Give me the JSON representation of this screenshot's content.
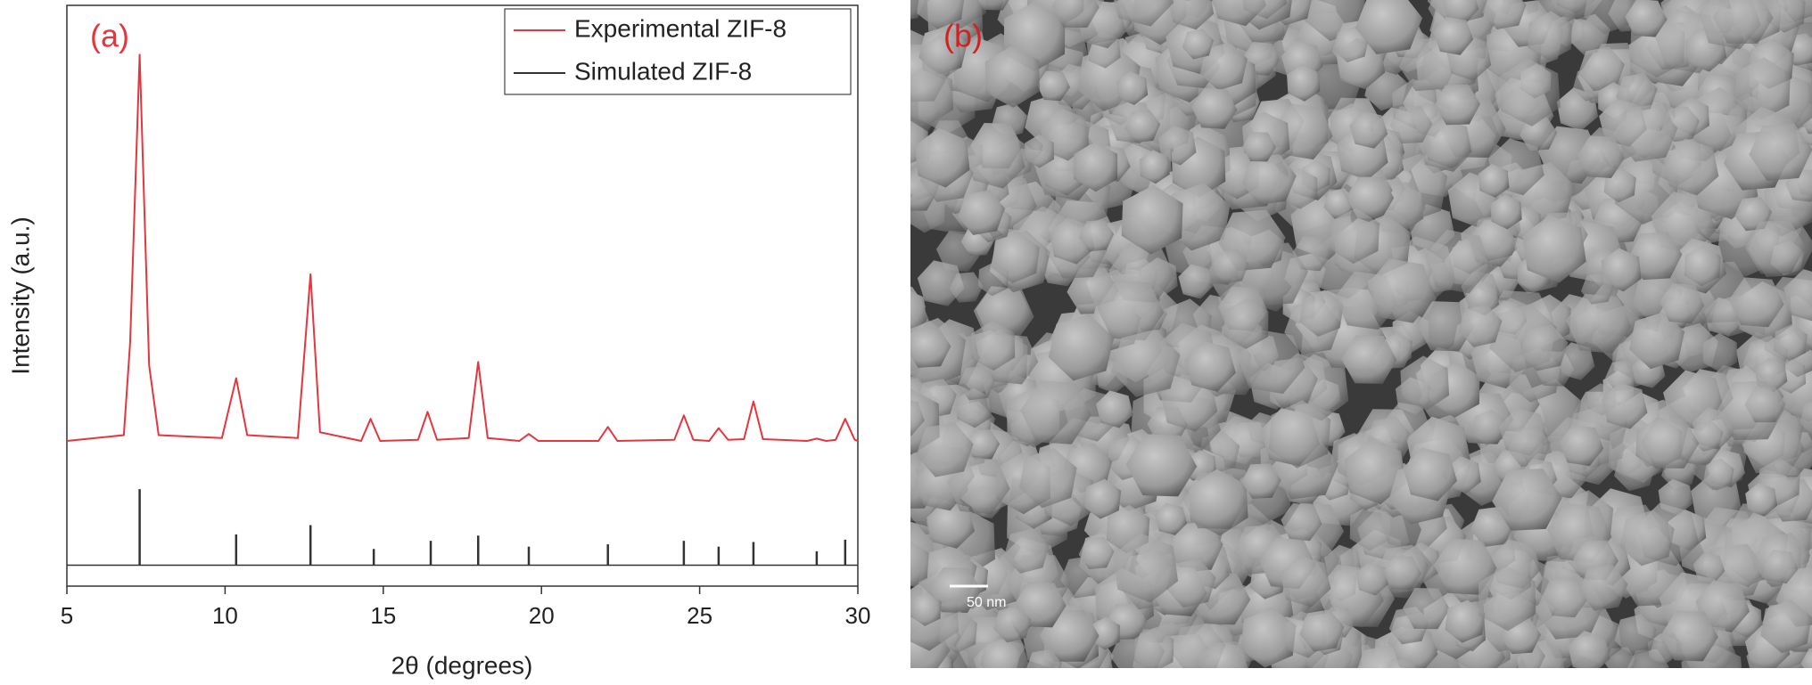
{
  "chart_data": {
    "type": "line",
    "panel_label": "(a)",
    "x_label": "2θ (degrees)",
    "y_label": "Intensity (a.u.)",
    "xlim": [
      5,
      30
    ],
    "xticks": [
      5,
      10,
      15,
      20,
      25,
      30
    ],
    "ylim": [
      0,
      100
    ],
    "legend": "upper right",
    "series": [
      {
        "name": "Experimental ZIF-8",
        "color": "#e8343c",
        "x": [
          5,
          6.8,
          7.0,
          7.3,
          7.6,
          7.9,
          9.9,
          10.35,
          10.7,
          12.3,
          12.7,
          13.0,
          14.3,
          14.6,
          14.9,
          16.1,
          16.4,
          16.7,
          17.7,
          18.0,
          18.3,
          19.3,
          19.6,
          19.9,
          21.8,
          22.1,
          22.4,
          24.2,
          24.5,
          24.8,
          25.3,
          25.6,
          25.9,
          26.4,
          26.7,
          27.0,
          28.4,
          28.7,
          29.0,
          29.3,
          29.6,
          29.9,
          30
        ],
        "values": [
          25,
          26,
          42,
          91.5,
          38,
          26,
          25.5,
          35.8,
          26,
          25.5,
          53.7,
          26.5,
          25,
          28.8,
          25,
          25.2,
          30,
          25.2,
          25.5,
          38.6,
          25.5,
          25,
          26.2,
          25,
          25,
          27.4,
          25,
          25.2,
          29.4,
          25.2,
          25,
          27.2,
          25.2,
          25.3,
          31.8,
          25.3,
          25,
          25.4,
          25,
          25.2,
          28.8,
          25.2,
          25
        ]
      },
      {
        "name": "Simulated ZIF-8",
        "color": "#333333",
        "mark": "stem",
        "baseline": 3.6,
        "x": [
          7.3,
          10.35,
          12.7,
          14.7,
          16.5,
          18.0,
          19.6,
          22.1,
          24.5,
          25.6,
          26.7,
          28.7,
          29.6
        ],
        "values": [
          16.7,
          8.9,
          10.5,
          6.4,
          7.8,
          8.7,
          6.8,
          7.2,
          7.8,
          6.8,
          7.6,
          6.0,
          8.0
        ]
      }
    ]
  },
  "sem_image": {
    "panel_label": "(b)",
    "scale_bar": "50 nm"
  }
}
